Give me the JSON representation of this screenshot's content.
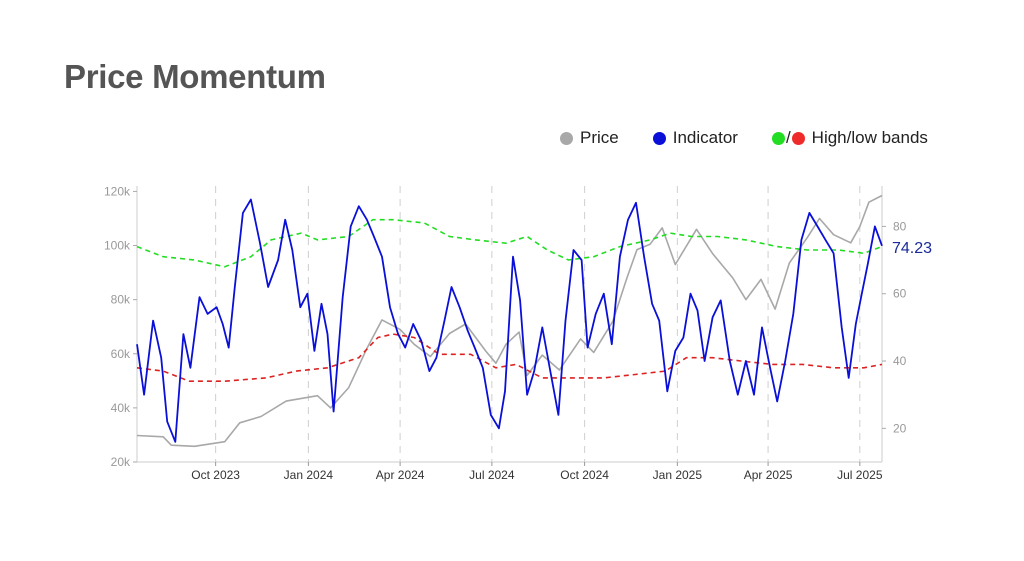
{
  "title": "Price Momentum",
  "legend": {
    "price": "Price",
    "indicator": "Indicator",
    "bands": "High/low bands",
    "bands_sep": "/"
  },
  "colors": {
    "price": "#a8a8a8",
    "indicator": "#0a10d8",
    "high_band": "#22dd22",
    "low_band": "#dd2222",
    "title": "#555555",
    "axis_text": "#999999",
    "last_value": "#1a2a9a"
  },
  "chart_data": {
    "type": "line",
    "x_axis": {
      "range": [
        "2023-07-15",
        "2025-07-23"
      ],
      "tick_dates": [
        "2023-10-01",
        "2024-01-01",
        "2024-04-01",
        "2024-07-01",
        "2024-10-01",
        "2025-01-01",
        "2025-04-01",
        "2025-07-01"
      ],
      "tick_labels": [
        "Oct 2023",
        "Jan 2024",
        "Apr 2024",
        "Jul 2024",
        "Oct 2024",
        "Jan 2025",
        "Apr 2025",
        "Jul 2025"
      ],
      "vertical_gridlines": "dashed"
    },
    "y_left": {
      "range": [
        20000,
        122000
      ],
      "ticks": [
        20000,
        40000,
        60000,
        80000,
        100000,
        120000
      ],
      "tick_labels": [
        "20k",
        "40k",
        "60k",
        "80k",
        "100k",
        "120k"
      ]
    },
    "y_right": {
      "range": [
        10,
        92
      ],
      "ticks": [
        20,
        40,
        60,
        80
      ],
      "tick_labels": [
        "20",
        "40",
        "60",
        "80"
      ]
    },
    "last_value_label": "74.23",
    "series": [
      {
        "name": "Price",
        "axis": "left",
        "style": "solid",
        "points": [
          [
            "2023-07-15",
            29800
          ],
          [
            "2023-08-10",
            29300
          ],
          [
            "2023-08-18",
            26200
          ],
          [
            "2023-09-10",
            25800
          ],
          [
            "2023-10-10",
            27500
          ],
          [
            "2023-10-25",
            34500
          ],
          [
            "2023-11-15",
            36800
          ],
          [
            "2023-12-10",
            42500
          ],
          [
            "2024-01-10",
            44500
          ],
          [
            "2024-01-23",
            40000
          ],
          [
            "2024-02-10",
            47500
          ],
          [
            "2024-02-28",
            62000
          ],
          [
            "2024-03-14",
            72500
          ],
          [
            "2024-04-01",
            69000
          ],
          [
            "2024-04-15",
            63500
          ],
          [
            "2024-05-01",
            59000
          ],
          [
            "2024-05-20",
            67500
          ],
          [
            "2024-06-05",
            71000
          ],
          [
            "2024-06-25",
            61000
          ],
          [
            "2024-07-05",
            56500
          ],
          [
            "2024-07-15",
            63500
          ],
          [
            "2024-07-28",
            68000
          ],
          [
            "2024-08-05",
            52000
          ],
          [
            "2024-08-20",
            59500
          ],
          [
            "2024-09-06",
            54000
          ],
          [
            "2024-09-27",
            65500
          ],
          [
            "2024-10-10",
            60500
          ],
          [
            "2024-10-29",
            72000
          ],
          [
            "2024-11-12",
            88000
          ],
          [
            "2024-11-22",
            98500
          ],
          [
            "2024-12-05",
            100500
          ],
          [
            "2024-12-17",
            106500
          ],
          [
            "2024-12-30",
            93000
          ],
          [
            "2025-01-20",
            106000
          ],
          [
            "2025-02-05",
            97000
          ],
          [
            "2025-02-25",
            88000
          ],
          [
            "2025-03-10",
            80000
          ],
          [
            "2025-03-25",
            87500
          ],
          [
            "2025-04-08",
            76500
          ],
          [
            "2025-04-22",
            93500
          ],
          [
            "2025-05-10",
            103000
          ],
          [
            "2025-05-22",
            110000
          ],
          [
            "2025-06-05",
            104000
          ],
          [
            "2025-06-22",
            101000
          ],
          [
            "2025-07-01",
            107000
          ],
          [
            "2025-07-10",
            116000
          ],
          [
            "2025-07-23",
            118500
          ]
        ]
      },
      {
        "name": "Indicator",
        "axis": "right",
        "style": "solid",
        "points": [
          [
            "2023-07-15",
            45
          ],
          [
            "2023-07-22",
            30
          ],
          [
            "2023-07-31",
            52
          ],
          [
            "2023-08-08",
            41
          ],
          [
            "2023-08-14",
            22
          ],
          [
            "2023-08-22",
            16
          ],
          [
            "2023-08-30",
            48
          ],
          [
            "2023-09-06",
            38
          ],
          [
            "2023-09-15",
            59
          ],
          [
            "2023-09-23",
            54
          ],
          [
            "2023-10-02",
            56
          ],
          [
            "2023-10-08",
            51
          ],
          [
            "2023-10-14",
            44
          ],
          [
            "2023-10-20",
            62
          ],
          [
            "2023-10-28",
            84
          ],
          [
            "2023-11-05",
            88
          ],
          [
            "2023-11-14",
            75
          ],
          [
            "2023-11-22",
            62
          ],
          [
            "2023-12-02",
            70
          ],
          [
            "2023-12-09",
            82
          ],
          [
            "2023-12-16",
            73
          ],
          [
            "2023-12-24",
            56
          ],
          [
            "2023-12-31",
            60
          ],
          [
            "2024-01-07",
            43
          ],
          [
            "2024-01-14",
            57
          ],
          [
            "2024-01-20",
            48
          ],
          [
            "2024-01-26",
            25
          ],
          [
            "2024-02-04",
            59
          ],
          [
            "2024-02-12",
            80
          ],
          [
            "2024-02-20",
            86
          ],
          [
            "2024-02-28",
            82
          ],
          [
            "2024-03-06",
            77
          ],
          [
            "2024-03-14",
            71
          ],
          [
            "2024-03-22",
            56
          ],
          [
            "2024-03-30",
            48
          ],
          [
            "2024-04-06",
            44
          ],
          [
            "2024-04-14",
            51
          ],
          [
            "2024-04-22",
            46
          ],
          [
            "2024-04-30",
            37
          ],
          [
            "2024-05-07",
            41
          ],
          [
            "2024-05-15",
            52
          ],
          [
            "2024-05-22",
            62
          ],
          [
            "2024-05-30",
            56
          ],
          [
            "2024-06-07",
            49
          ],
          [
            "2024-06-14",
            44
          ],
          [
            "2024-06-22",
            38
          ],
          [
            "2024-06-30",
            24
          ],
          [
            "2024-07-08",
            20
          ],
          [
            "2024-07-14",
            31
          ],
          [
            "2024-07-22",
            71
          ],
          [
            "2024-07-29",
            58
          ],
          [
            "2024-08-05",
            30
          ],
          [
            "2024-08-12",
            37
          ],
          [
            "2024-08-20",
            50
          ],
          [
            "2024-08-28",
            37
          ],
          [
            "2024-09-05",
            24
          ],
          [
            "2024-09-12",
            52
          ],
          [
            "2024-09-20",
            73
          ],
          [
            "2024-09-28",
            70
          ],
          [
            "2024-10-04",
            44
          ],
          [
            "2024-10-12",
            54
          ],
          [
            "2024-10-20",
            60
          ],
          [
            "2024-10-28",
            45
          ],
          [
            "2024-11-05",
            71
          ],
          [
            "2024-11-13",
            82
          ],
          [
            "2024-11-21",
            87
          ],
          [
            "2024-11-29",
            71
          ],
          [
            "2024-12-07",
            57
          ],
          [
            "2024-12-14",
            52
          ],
          [
            "2024-12-22",
            31
          ],
          [
            "2024-12-30",
            43
          ],
          [
            "2025-01-07",
            47
          ],
          [
            "2025-01-14",
            60
          ],
          [
            "2025-01-21",
            55
          ],
          [
            "2025-01-28",
            40
          ],
          [
            "2025-02-05",
            53
          ],
          [
            "2025-02-13",
            58
          ],
          [
            "2025-02-22",
            40
          ],
          [
            "2025-03-02",
            30
          ],
          [
            "2025-03-10",
            40
          ],
          [
            "2025-03-18",
            30
          ],
          [
            "2025-03-26",
            50
          ],
          [
            "2025-04-03",
            38
          ],
          [
            "2025-04-10",
            28
          ],
          [
            "2025-04-18",
            40
          ],
          [
            "2025-04-26",
            54
          ],
          [
            "2025-05-04",
            76
          ],
          [
            "2025-05-12",
            84
          ],
          [
            "2025-05-20",
            80
          ],
          [
            "2025-05-28",
            76
          ],
          [
            "2025-06-05",
            72
          ],
          [
            "2025-06-13",
            50
          ],
          [
            "2025-06-20",
            35
          ],
          [
            "2025-06-27",
            51
          ],
          [
            "2025-07-03",
            60
          ],
          [
            "2025-07-09",
            69
          ],
          [
            "2025-07-16",
            80
          ],
          [
            "2025-07-23",
            74.23
          ]
        ]
      },
      {
        "name": "High band",
        "axis": "right",
        "style": "dashed",
        "points": [
          [
            "2023-07-15",
            74
          ],
          [
            "2023-08-10",
            71
          ],
          [
            "2023-09-10",
            70
          ],
          [
            "2023-10-10",
            68
          ],
          [
            "2023-11-05",
            71
          ],
          [
            "2023-11-25",
            76
          ],
          [
            "2023-12-25",
            78
          ],
          [
            "2024-01-10",
            76
          ],
          [
            "2024-02-10",
            77
          ],
          [
            "2024-03-05",
            82
          ],
          [
            "2024-03-25",
            82
          ],
          [
            "2024-04-25",
            81
          ],
          [
            "2024-05-20",
            77
          ],
          [
            "2024-06-15",
            76
          ],
          [
            "2024-07-15",
            75
          ],
          [
            "2024-08-05",
            77
          ],
          [
            "2024-08-25",
            73
          ],
          [
            "2024-09-15",
            70
          ],
          [
            "2024-10-10",
            71
          ],
          [
            "2024-11-05",
            74
          ],
          [
            "2024-12-05",
            76
          ],
          [
            "2024-12-25",
            78
          ],
          [
            "2025-01-15",
            77
          ],
          [
            "2025-02-10",
            77
          ],
          [
            "2025-03-10",
            76
          ],
          [
            "2025-04-10",
            74
          ],
          [
            "2025-05-10",
            73
          ],
          [
            "2025-06-10",
            73
          ],
          [
            "2025-07-05",
            72
          ],
          [
            "2025-07-23",
            74
          ]
        ]
      },
      {
        "name": "Low band",
        "axis": "right",
        "style": "dashed",
        "points": [
          [
            "2023-07-15",
            38
          ],
          [
            "2023-08-10",
            37
          ],
          [
            "2023-09-05",
            34
          ],
          [
            "2023-10-10",
            34
          ],
          [
            "2023-11-20",
            35
          ],
          [
            "2023-12-20",
            37
          ],
          [
            "2024-01-20",
            38
          ],
          [
            "2024-02-20",
            41
          ],
          [
            "2024-03-10",
            47
          ],
          [
            "2024-03-25",
            48
          ],
          [
            "2024-04-15",
            47
          ],
          [
            "2024-05-10",
            42
          ],
          [
            "2024-06-10",
            42
          ],
          [
            "2024-07-05",
            38
          ],
          [
            "2024-07-25",
            39
          ],
          [
            "2024-08-20",
            35
          ],
          [
            "2024-09-20",
            35
          ],
          [
            "2024-10-20",
            35
          ],
          [
            "2024-11-20",
            36
          ],
          [
            "2024-12-20",
            37
          ],
          [
            "2025-01-10",
            41
          ],
          [
            "2025-02-05",
            41
          ],
          [
            "2025-03-05",
            40
          ],
          [
            "2025-04-05",
            39
          ],
          [
            "2025-05-05",
            39
          ],
          [
            "2025-06-05",
            38
          ],
          [
            "2025-07-05",
            38
          ],
          [
            "2025-07-23",
            39
          ]
        ]
      }
    ]
  }
}
